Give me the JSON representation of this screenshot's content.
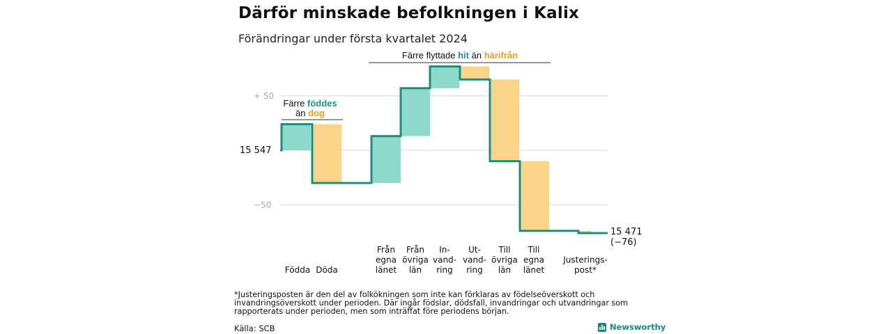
{
  "title": "Därför minskade befolkningen i Kalix",
  "subtitle": "Förändringar under första kvartalet 2024",
  "colors": {
    "positive": "#8ed8cc",
    "negative": "#fbd48a",
    "line": "#1b8f7e",
    "pos_text": "#1b9486",
    "neg_text": "#f0a020",
    "grid": "#d9d9d9",
    "axis_text": "#aaaaaa"
  },
  "chart_data": {
    "type": "waterfall",
    "start_value": 15547,
    "end_value": 15471,
    "ylim": [
      -60,
      80
    ],
    "yticks": [
      {
        "value": 50,
        "label": "+ 50"
      },
      {
        "value": 0,
        "label": "15  547"
      },
      {
        "value": -50,
        "label": "−50"
      }
    ],
    "steps": [
      {
        "label": [
          "Födda"
        ],
        "change": 24
      },
      {
        "label": [
          "Döda"
        ],
        "change": -54
      },
      {
        "label": [
          "Från",
          "egna",
          "länet"
        ],
        "change": 43
      },
      {
        "label": [
          "Från",
          "övriga",
          "län"
        ],
        "change": 44
      },
      {
        "label": [
          "In-",
          "vand-",
          "ring"
        ],
        "change": 20
      },
      {
        "label": [
          "Ut-",
          "vand-",
          "ring"
        ],
        "change": -12
      },
      {
        "label": [
          "Till",
          "övriga",
          "län"
        ],
        "change": -75
      },
      {
        "label": [
          "Till",
          "egna",
          "länet"
        ],
        "change": -64
      },
      {
        "label": [
          "Justerings-",
          "post*"
        ],
        "change": -2
      }
    ],
    "end_label": [
      "15 471",
      "(−76)"
    ],
    "annotations": {
      "births": {
        "line1_prefix": "Färre",
        "line1_highlight": "föddes",
        "line2_prefix": "än",
        "line2_highlight": "dog"
      },
      "migration": {
        "prefix": "Färre flyttade",
        "highlight1": "hit",
        "middle": "än",
        "highlight2": "härifrån"
      }
    }
  },
  "footnote": "*Justeringsposten är den del av folkökningen som inte kan förklaras av födelseöverskott och invandringsöverskott under perioden. Där ingår födslar, dödsfall, invandringar och utvandringar som rapporterats under perioden, men som inträffat före periodens början.",
  "source": "Källa: SCB",
  "brand": "Newsworthy"
}
